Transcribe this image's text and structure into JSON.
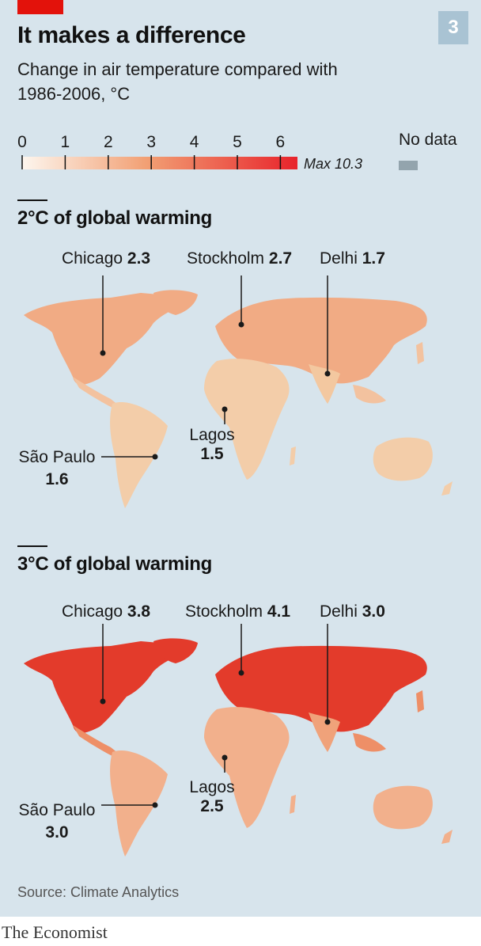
{
  "header": {
    "title": "It makes a difference",
    "subtitle": "Change in air temperature compared with 1986-2006, °C",
    "badge": "3"
  },
  "legend": {
    "ticks": [
      "0",
      "1",
      "2",
      "3",
      "4",
      "5",
      "6"
    ],
    "max_label": "Max 10.3",
    "no_data_label": "No data",
    "colors": {
      "start": "#fdf6ee",
      "mid": "#f2a074",
      "end": "#e8232b",
      "no_data": "#93a4ad"
    }
  },
  "colors": {
    "accent": "#e3120b",
    "badge_bg": "#a9c3d3",
    "ocean": "#d7e4ec",
    "pointer": "#1a1a1a"
  },
  "sections": [
    {
      "title": "2°C of global warming",
      "land_colors": {
        "north": "#f1ab84",
        "mid": "#f3c29f",
        "south": "#f3cda9",
        "india": "#f3c8a0"
      },
      "cities": [
        {
          "name": "Chicago",
          "value": "2.3"
        },
        {
          "name": "Stockholm",
          "value": "2.7"
        },
        {
          "name": "Delhi",
          "value": "1.7"
        },
        {
          "name": "Lagos",
          "value": "1.5"
        },
        {
          "name": "São Paulo",
          "value": "1.6"
        }
      ]
    },
    {
      "title": "3°C of global warming",
      "land_colors": {
        "north": "#e33b2b",
        "mid": "#ee8f67",
        "south": "#f2b08c",
        "india": "#f0a27a"
      },
      "cities": [
        {
          "name": "Chicago",
          "value": "3.8"
        },
        {
          "name": "Stockholm",
          "value": "4.1"
        },
        {
          "name": "Delhi",
          "value": "3.0"
        },
        {
          "name": "Lagos",
          "value": "2.5"
        },
        {
          "name": "São Paulo",
          "value": "3.0"
        }
      ]
    }
  ],
  "footer": {
    "source": "Source: Climate Analytics",
    "brand": "The Economist"
  }
}
